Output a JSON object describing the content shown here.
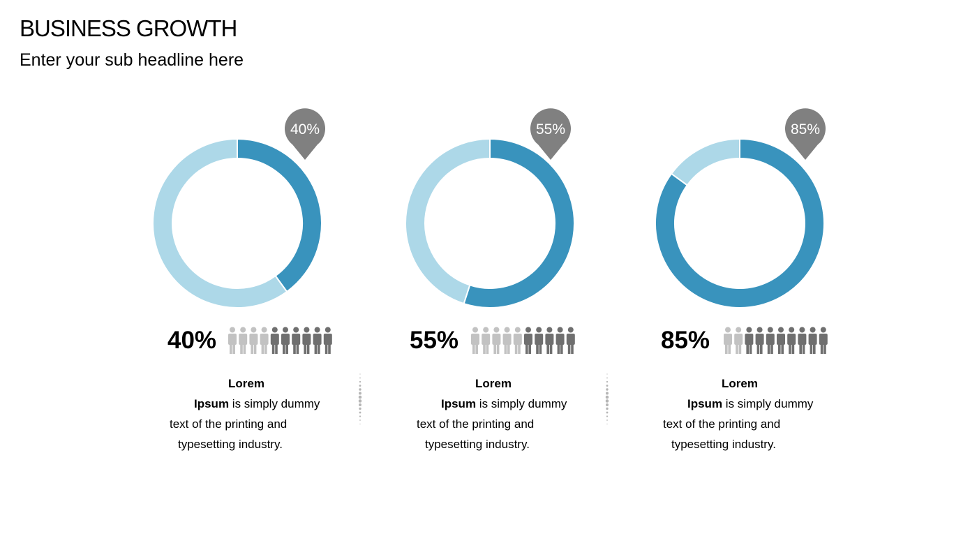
{
  "header": {
    "title": "BUSINESS GROWTH",
    "subtitle": "Enter your sub headline here"
  },
  "colors": {
    "filled": "#3993bd",
    "remaining": "#add8e8",
    "pin": "#808080",
    "person_dark": "#6f6f6f",
    "person_light": "#c2c2c2"
  },
  "chart_data": [
    {
      "type": "pie",
      "variant": "donut",
      "value": 40,
      "total": 100,
      "pin_label": "40%",
      "big_label": "40%",
      "people_highlighted": 6,
      "people_total": 10,
      "desc": {
        "bold_a": "Lorem",
        "bold_b": "Ipsum",
        "text_b": " is simply dummy",
        "text_c": "text of the printing and",
        "text_d": "typesetting industry."
      }
    },
    {
      "type": "pie",
      "variant": "donut",
      "value": 55,
      "total": 100,
      "pin_label": "55%",
      "big_label": "55%",
      "people_highlighted": 5,
      "people_total": 10,
      "desc": {
        "bold_a": "Lorem",
        "bold_b": "Ipsum",
        "text_b": " is simply dummy",
        "text_c": "text of the printing and",
        "text_d": "typesetting industry."
      }
    },
    {
      "type": "pie",
      "variant": "donut",
      "value": 85,
      "total": 100,
      "pin_label": "85%",
      "big_label": "85%",
      "people_highlighted": 8,
      "people_total": 10,
      "desc": {
        "bold_a": "Lorem",
        "bold_b": "Ipsum",
        "text_b": " is simply dummy",
        "text_c": "text of the printing and",
        "text_d": "typesetting industry."
      }
    }
  ]
}
